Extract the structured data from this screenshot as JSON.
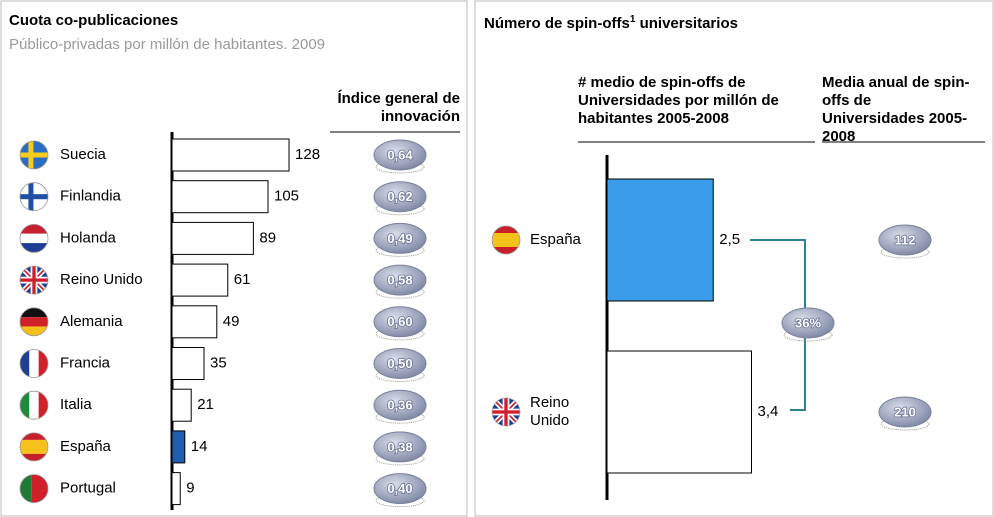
{
  "chart_data": [
    {
      "type": "bar",
      "orientation": "horizontal",
      "title": "Cuota co-publicaciones",
      "subtitle": "Público-privadas por millón de habitantes. 2009",
      "categories": [
        "Suecia",
        "Finlandia",
        "Holanda",
        "Reino Unido",
        "Alemania",
        "Francia",
        "Italia",
        "España",
        "Portugal"
      ],
      "values": [
        128,
        105,
        89,
        61,
        49,
        35,
        21,
        14,
        9
      ],
      "colors": [
        "#ffffff",
        "#ffffff",
        "#ffffff",
        "#ffffff",
        "#ffffff",
        "#ffffff",
        "#ffffff",
        "#1f5fb0",
        "#ffffff"
      ],
      "xlim": [
        0,
        140
      ],
      "index": {
        "name": "Índice general de innovación",
        "values": [
          0.64,
          0.62,
          0.49,
          0.58,
          0.6,
          0.5,
          0.36,
          0.38,
          0.4
        ],
        "value_labels": [
          "0,64",
          "0,62",
          "0,49",
          "0,58",
          "0,60",
          "0,50",
          "0,36",
          "0,38",
          "0,40"
        ]
      }
    },
    {
      "type": "bar",
      "orientation": "horizontal",
      "title": [
        "Número de spin-offs",
        "1",
        " universitarios"
      ],
      "categories": [
        "España",
        "Reino Unido"
      ],
      "series_name": "# medio de spin-offs de Universidades por millón de habitantes 2005-2008",
      "values": [
        2.5,
        3.4
      ],
      "value_labels": [
        "2,5",
        "3,4"
      ],
      "colors": [
        "#3a9be8",
        "#ffffff"
      ],
      "xlim": [
        0,
        4
      ],
      "annual": {
        "name": "Media anual de spin-offs de Universidades 2005-2008",
        "values": [
          112,
          210
        ]
      },
      "difference": {
        "value": 36,
        "label": "36%"
      }
    }
  ]
}
